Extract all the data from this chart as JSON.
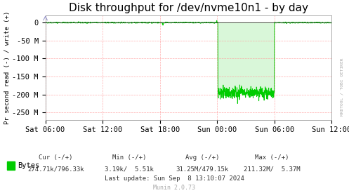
{
  "title": "Disk throughput for /dev/nvme10n1 - by day",
  "ylabel": "Pr second read (-) / write (+)",
  "background_color": "#FFFFFF",
  "plot_bg_color": "#FFFFFF",
  "grid_color": "#FF9999",
  "line_color": "#00CC00",
  "ylim": [
    -270000000,
    20000000
  ],
  "yticks": [
    0,
    -50000000,
    -100000000,
    -150000000,
    -200000000,
    -250000000
  ],
  "ytick_labels": [
    "0",
    "-50 M",
    "-100 M",
    "-150 M",
    "-200 M",
    "-250 M"
  ],
  "legend_label": "Bytes",
  "legend_color": "#00CC00",
  "cur_text": "Cur (-/+)",
  "cur_val": "274.71k/796.33k",
  "min_text": "Min (-/+)",
  "min_val": "3.19k/  5.51k",
  "avg_text": "Avg (-/+)",
  "avg_val": "31.25M/479.15k",
  "max_text": "Max (-/+)",
  "max_val": "211.32M/  5.37M",
  "last_update": "Last update: Sun Sep  8 13:10:07 2024",
  "munin_version": "Munin 2.0.73",
  "watermark": "RRDTOOL / TOBI OETIKER",
  "title_fontsize": 11,
  "axis_fontsize": 7.5,
  "legend_fontsize": 7.5,
  "x_start_hours": 6,
  "x_end_hours": 36,
  "xtick_positions": [
    6,
    12,
    18,
    24,
    30,
    36
  ],
  "xtick_labels": [
    "Sat 06:00",
    "Sat 12:00",
    "Sat 18:00",
    "Sun 00:00",
    "Sun 06:00",
    "Sun 12:00"
  ]
}
